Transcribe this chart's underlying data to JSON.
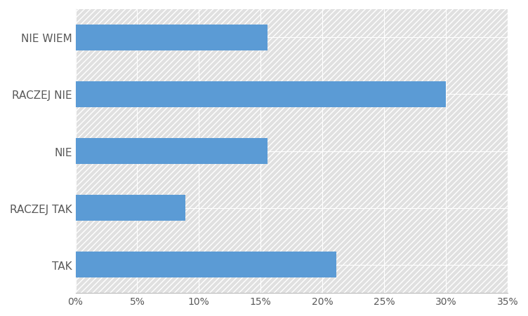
{
  "categories": [
    "TAK",
    "RACZEJ TAK",
    "NIE",
    "RACZEJ NIE",
    "NIE WIEM"
  ],
  "values": [
    0.2111,
    0.0889,
    0.1556,
    0.3,
    0.1556
  ],
  "bar_color": "#5B9BD5",
  "fig_bg_color": "#FFFFFF",
  "plot_bg_color": "#E0E0E0",
  "hatch_color": "#FFFFFF",
  "xlim": [
    0,
    0.35
  ],
  "xticks": [
    0,
    0.05,
    0.1,
    0.15,
    0.2,
    0.25,
    0.3,
    0.35
  ],
  "bar_height": 0.45,
  "grid_color": "#FFFFFF",
  "label_fontsize": 11,
  "tick_fontsize": 10,
  "label_color": "#595959",
  "tick_color": "#595959"
}
